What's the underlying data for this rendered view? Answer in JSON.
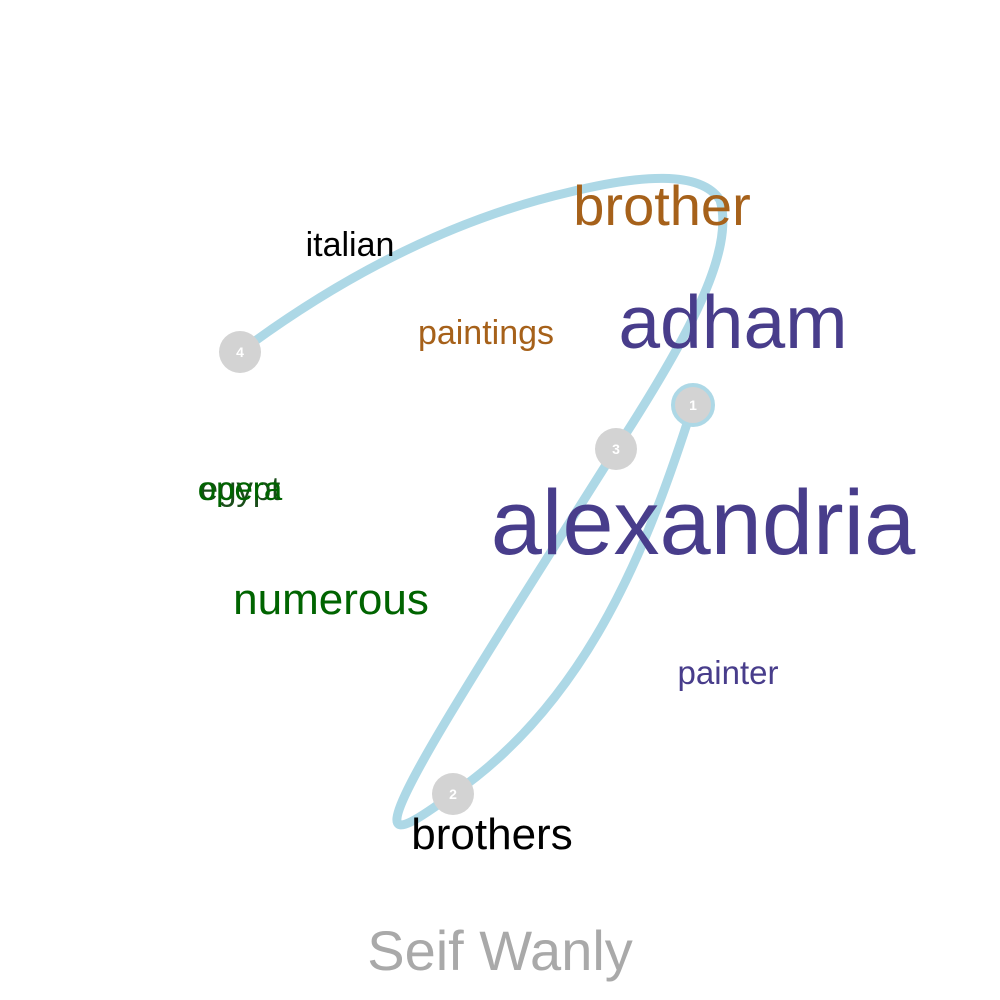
{
  "title": "Seif Wanly",
  "colors": {
    "path": "#add8e6",
    "marker": "#d3d3d3",
    "title": "#a9a9a9",
    "dark_blue": "#483d8b",
    "brown": "#a6611a",
    "green": "#006400",
    "dark_green": "#1a4d1a",
    "black": "#000000"
  },
  "words": [
    {
      "id": "alexandria",
      "text": "alexandria",
      "color": "#483d8b"
    },
    {
      "id": "adham",
      "text": "adham",
      "color": "#483d8b"
    },
    {
      "id": "brother",
      "text": "brother",
      "color": "#a6611a"
    },
    {
      "id": "brothers",
      "text": "brothers",
      "color": "#000000"
    },
    {
      "id": "numerous",
      "text": "numerous",
      "color": "#006400"
    },
    {
      "id": "italian",
      "text": "italian",
      "color": "#000000"
    },
    {
      "id": "paintings",
      "text": "paintings",
      "color": "#a6611a"
    },
    {
      "id": "painter",
      "text": "painter",
      "color": "#483d8b"
    },
    {
      "id": "egypt",
      "text": "egypt",
      "color": "#1a4d1a"
    },
    {
      "id": "opera",
      "text": "opera",
      "color": "#006400"
    }
  ],
  "markers": [
    {
      "label": "1"
    },
    {
      "label": "2"
    },
    {
      "label": "3"
    },
    {
      "label": "4"
    }
  ]
}
